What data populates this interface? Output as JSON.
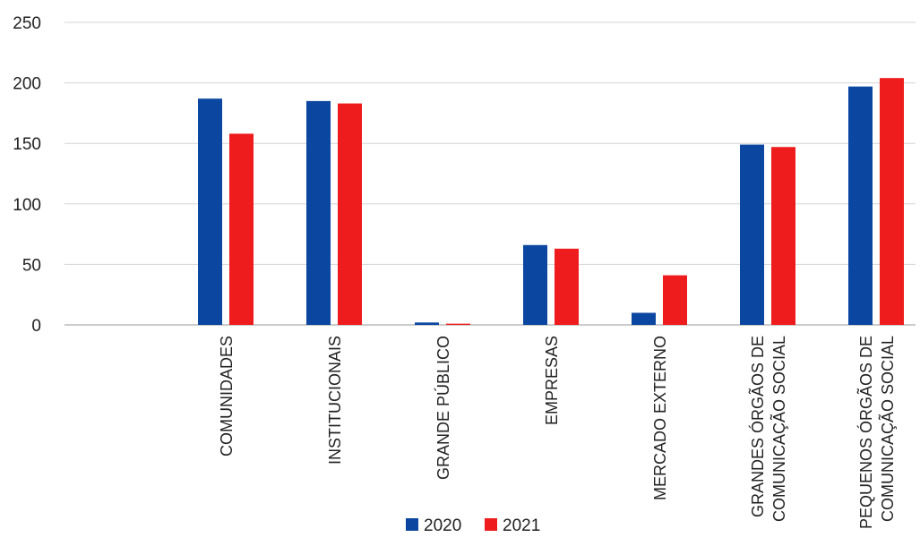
{
  "chart_data": {
    "type": "bar",
    "title": "",
    "xlabel": "",
    "ylabel": "",
    "ylim": [
      0,
      250
    ],
    "yticks": [
      0,
      50,
      100,
      150,
      200,
      250
    ],
    "grid": true,
    "legend_position": "bottom",
    "categories": [
      [
        "COMUNIDADES"
      ],
      [
        "INSTITUCIONAIS"
      ],
      [
        "GRANDE PÚBLICO"
      ],
      [
        "EMPRESAS"
      ],
      [
        "MERCADO EXTERNO"
      ],
      [
        "GRANDES ÓRGÃOS DE",
        "COMUNICAÇÃO SOCIAL"
      ],
      [
        "PEQUENOS ÓRGÃOS DE",
        "COMUNICAÇÃO SOCIAL"
      ]
    ],
    "series": [
      {
        "name": "2020",
        "color": "#0b47a1",
        "values": [
          187,
          185,
          2,
          66,
          10,
          149,
          197
        ]
      },
      {
        "name": "2021",
        "color": "#ee1c1c",
        "values": [
          158,
          183,
          1,
          63,
          41,
          147,
          204
        ]
      }
    ]
  }
}
